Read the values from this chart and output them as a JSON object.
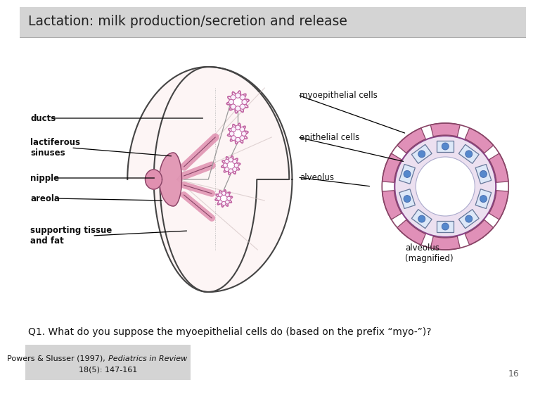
{
  "title": "Lactation: milk production/secretion and release",
  "title_bg": "#d4d4d4",
  "bg_color": "#ffffff",
  "question": "Q1. What do you suppose the myoepithelial cells do (based on the prefix “myo-”)?",
  "citation_bg": "#d4d4d4",
  "citation_normal": "Powers & Slusser (1997), ",
  "citation_italic": "Pediatrics in Review",
  "citation_line2": "18(5): 147-161",
  "page_number": "16",
  "pink_fill": "#e090b0",
  "pink_light": "#f0d0de",
  "breast_fill": "#fdf5f5",
  "outline_color": "#555555",
  "purple_pink": "#c060a0",
  "myo_fill": "#e090b8",
  "epi_fill": "#dde8f8",
  "blue_dot": "#5588cc",
  "label_color": "#111111"
}
